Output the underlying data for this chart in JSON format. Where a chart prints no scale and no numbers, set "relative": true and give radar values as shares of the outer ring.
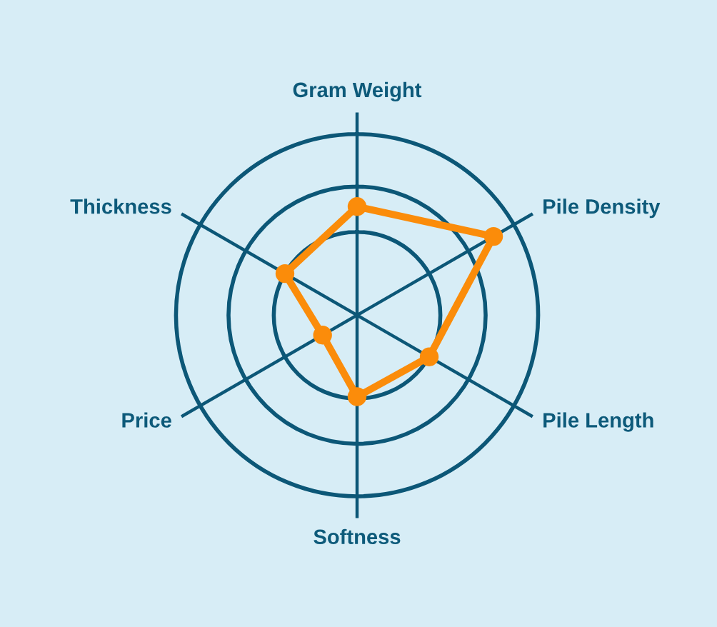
{
  "chart_data": {
    "type": "radar",
    "categories": [
      "Gram Weight",
      "Pile Density",
      "Pile Length",
      "Softness",
      "Price",
      "Thickness"
    ],
    "relative": true,
    "series": [
      {
        "color": "#fb8c0a",
        "values": [
          0.6,
          0.87,
          0.46,
          0.45,
          0.22,
          0.46
        ]
      }
    ],
    "marker": "circle",
    "line_style": "solid",
    "grid": true
  }
}
